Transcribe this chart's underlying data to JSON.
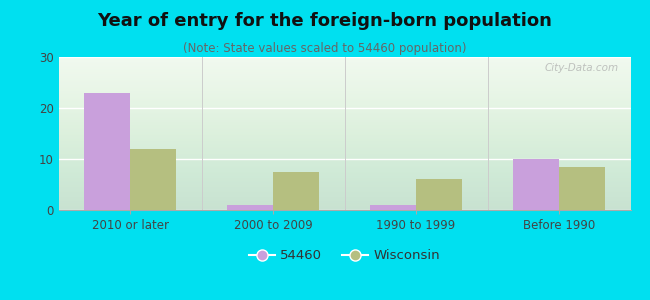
{
  "title": "Year of entry for the foreign-born population",
  "subtitle": "(Note: State values scaled to 54460 population)",
  "categories": [
    "2010 or later",
    "2000 to 2009",
    "1990 to 1999",
    "Before 1990"
  ],
  "values_54460": [
    23,
    1,
    1,
    10
  ],
  "values_wisconsin": [
    12,
    7.5,
    6,
    8.5
  ],
  "color_54460": "#c9a0dc",
  "color_wisconsin": "#b5bf80",
  "background_outer": "#00e0f0",
  "background_plot_top": "#ffffff",
  "background_plot_bottom": "#d8ead8",
  "ylim": [
    0,
    30
  ],
  "yticks": [
    0,
    10,
    20,
    30
  ],
  "legend_label_54460": "54460",
  "legend_label_wisconsin": "Wisconsin",
  "bar_width": 0.32,
  "title_fontsize": 13,
  "subtitle_fontsize": 8.5,
  "tick_fontsize": 8.5,
  "legend_fontsize": 9.5,
  "watermark": "City-Data.com"
}
